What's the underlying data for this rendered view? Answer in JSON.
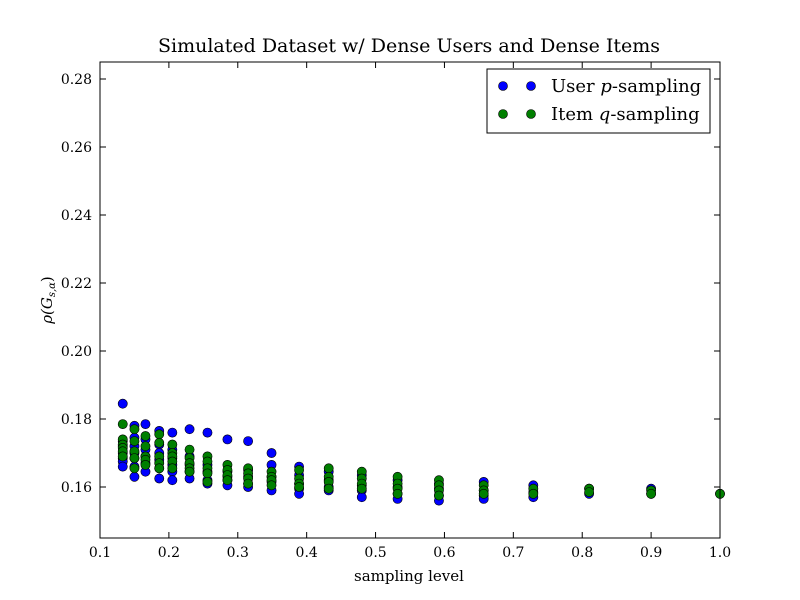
{
  "chart_data": {
    "type": "scatter",
    "title": "Simulated Dataset w/ Dense Users and Dense Items",
    "xlabel": "sampling level",
    "ylabel": "ρ(G",
    "ylabel_subscript": "s,α",
    "ylabel_suffix": ")",
    "xlim": [
      0.1,
      1.0
    ],
    "ylim": [
      0.145,
      0.285
    ],
    "xticks": [
      "0.1",
      "0.2",
      "0.3",
      "0.4",
      "0.5",
      "0.6",
      "0.7",
      "0.8",
      "0.9",
      "1.0"
    ],
    "yticks": [
      "0.16",
      "0.18",
      "0.20",
      "0.22",
      "0.24",
      "0.26",
      "0.28"
    ],
    "grid": false,
    "legend_position": "top-right",
    "series": [
      {
        "name": "User p-sampling",
        "legend_prefix": "User ",
        "legend_var": "p",
        "legend_suffix": "-sampling",
        "color": "#0000ff",
        "points": [
          [
            0.133,
            0.1845
          ],
          [
            0.133,
            0.1735
          ],
          [
            0.133,
            0.172
          ],
          [
            0.133,
            0.17
          ],
          [
            0.133,
            0.1685
          ],
          [
            0.133,
            0.1675
          ],
          [
            0.133,
            0.166
          ],
          [
            0.15,
            0.178
          ],
          [
            0.15,
            0.1745
          ],
          [
            0.15,
            0.172
          ],
          [
            0.15,
            0.17
          ],
          [
            0.15,
            0.1685
          ],
          [
            0.15,
            0.166
          ],
          [
            0.15,
            0.163
          ],
          [
            0.166,
            0.1785
          ],
          [
            0.166,
            0.174
          ],
          [
            0.166,
            0.171
          ],
          [
            0.166,
            0.169
          ],
          [
            0.166,
            0.167
          ],
          [
            0.166,
            0.1645
          ],
          [
            0.186,
            0.1765
          ],
          [
            0.186,
            0.1725
          ],
          [
            0.186,
            0.17
          ],
          [
            0.186,
            0.168
          ],
          [
            0.186,
            0.1655
          ],
          [
            0.186,
            0.1625
          ],
          [
            0.205,
            0.176
          ],
          [
            0.205,
            0.171
          ],
          [
            0.205,
            0.1685
          ],
          [
            0.205,
            0.1665
          ],
          [
            0.205,
            0.1645
          ],
          [
            0.205,
            0.162
          ],
          [
            0.23,
            0.177
          ],
          [
            0.23,
            0.169
          ],
          [
            0.23,
            0.1665
          ],
          [
            0.23,
            0.1645
          ],
          [
            0.23,
            0.1625
          ],
          [
            0.256,
            0.176
          ],
          [
            0.256,
            0.1665
          ],
          [
            0.256,
            0.1645
          ],
          [
            0.256,
            0.162
          ],
          [
            0.256,
            0.161
          ],
          [
            0.285,
            0.174
          ],
          [
            0.285,
            0.1645
          ],
          [
            0.285,
            0.163
          ],
          [
            0.285,
            0.162
          ],
          [
            0.285,
            0.1605
          ],
          [
            0.315,
            0.1735
          ],
          [
            0.315,
            0.165
          ],
          [
            0.315,
            0.163
          ],
          [
            0.315,
            0.161
          ],
          [
            0.315,
            0.16
          ],
          [
            0.349,
            0.17
          ],
          [
            0.349,
            0.1665
          ],
          [
            0.349,
            0.163
          ],
          [
            0.349,
            0.1615
          ],
          [
            0.349,
            0.159
          ],
          [
            0.389,
            0.166
          ],
          [
            0.389,
            0.1635
          ],
          [
            0.389,
            0.161
          ],
          [
            0.389,
            0.1595
          ],
          [
            0.389,
            0.158
          ],
          [
            0.432,
            0.1645
          ],
          [
            0.432,
            0.162
          ],
          [
            0.432,
            0.16
          ],
          [
            0.432,
            0.159
          ],
          [
            0.48,
            0.1635
          ],
          [
            0.48,
            0.1605
          ],
          [
            0.48,
            0.159
          ],
          [
            0.48,
            0.157
          ],
          [
            0.532,
            0.162
          ],
          [
            0.532,
            0.16
          ],
          [
            0.532,
            0.158
          ],
          [
            0.532,
            0.1565
          ],
          [
            0.592,
            0.161
          ],
          [
            0.592,
            0.1595
          ],
          [
            0.592,
            0.1575
          ],
          [
            0.592,
            0.156
          ],
          [
            0.657,
            0.1615
          ],
          [
            0.657,
            0.159
          ],
          [
            0.657,
            0.1575
          ],
          [
            0.657,
            0.1565
          ],
          [
            0.729,
            0.1605
          ],
          [
            0.729,
            0.1585
          ],
          [
            0.729,
            0.157
          ],
          [
            0.81,
            0.1595
          ],
          [
            0.81,
            0.158
          ],
          [
            0.9,
            0.1595
          ],
          [
            0.9,
            0.158
          ],
          [
            1.0,
            0.158
          ]
        ]
      },
      {
        "name": "Item q-sampling",
        "legend_prefix": "Item ",
        "legend_var": "q",
        "legend_suffix": "-sampling",
        "color": "#007f00",
        "points": [
          [
            0.133,
            0.1785
          ],
          [
            0.133,
            0.174
          ],
          [
            0.133,
            0.1725
          ],
          [
            0.133,
            0.1715
          ],
          [
            0.133,
            0.1705
          ],
          [
            0.133,
            0.169
          ],
          [
            0.15,
            0.177
          ],
          [
            0.15,
            0.1735
          ],
          [
            0.15,
            0.1705
          ],
          [
            0.15,
            0.1685
          ],
          [
            0.15,
            0.1655
          ],
          [
            0.166,
            0.175
          ],
          [
            0.166,
            0.172
          ],
          [
            0.166,
            0.169
          ],
          [
            0.166,
            0.168
          ],
          [
            0.166,
            0.1665
          ],
          [
            0.186,
            0.1755
          ],
          [
            0.186,
            0.173
          ],
          [
            0.186,
            0.169
          ],
          [
            0.186,
            0.167
          ],
          [
            0.186,
            0.1655
          ],
          [
            0.205,
            0.1725
          ],
          [
            0.205,
            0.17
          ],
          [
            0.205,
            0.169
          ],
          [
            0.205,
            0.1675
          ],
          [
            0.205,
            0.1655
          ],
          [
            0.23,
            0.171
          ],
          [
            0.23,
            0.1685
          ],
          [
            0.23,
            0.167
          ],
          [
            0.23,
            0.1655
          ],
          [
            0.23,
            0.1645
          ],
          [
            0.256,
            0.169
          ],
          [
            0.256,
            0.1675
          ],
          [
            0.256,
            0.1655
          ],
          [
            0.256,
            0.164
          ],
          [
            0.256,
            0.1615
          ],
          [
            0.285,
            0.1665
          ],
          [
            0.285,
            0.165
          ],
          [
            0.285,
            0.1635
          ],
          [
            0.285,
            0.162
          ],
          [
            0.315,
            0.1655
          ],
          [
            0.315,
            0.164
          ],
          [
            0.315,
            0.1625
          ],
          [
            0.315,
            0.161
          ],
          [
            0.349,
            0.1645
          ],
          [
            0.349,
            0.163
          ],
          [
            0.349,
            0.162
          ],
          [
            0.349,
            0.1605
          ],
          [
            0.389,
            0.165
          ],
          [
            0.389,
            0.1625
          ],
          [
            0.389,
            0.161
          ],
          [
            0.389,
            0.16
          ],
          [
            0.432,
            0.1655
          ],
          [
            0.432,
            0.163
          ],
          [
            0.432,
            0.1615
          ],
          [
            0.432,
            0.1595
          ],
          [
            0.48,
            0.1645
          ],
          [
            0.48,
            0.1625
          ],
          [
            0.48,
            0.161
          ],
          [
            0.48,
            0.1595
          ],
          [
            0.532,
            0.163
          ],
          [
            0.532,
            0.161
          ],
          [
            0.532,
            0.1595
          ],
          [
            0.532,
            0.158
          ],
          [
            0.592,
            0.162
          ],
          [
            0.592,
            0.1605
          ],
          [
            0.592,
            0.159
          ],
          [
            0.592,
            0.1575
          ],
          [
            0.657,
            0.1605
          ],
          [
            0.657,
            0.159
          ],
          [
            0.657,
            0.158
          ],
          [
            0.729,
            0.1595
          ],
          [
            0.729,
            0.158
          ],
          [
            0.81,
            0.1595
          ],
          [
            0.81,
            0.1585
          ],
          [
            0.9,
            0.159
          ],
          [
            0.9,
            0.158
          ],
          [
            1.0,
            0.158
          ]
        ]
      }
    ]
  }
}
